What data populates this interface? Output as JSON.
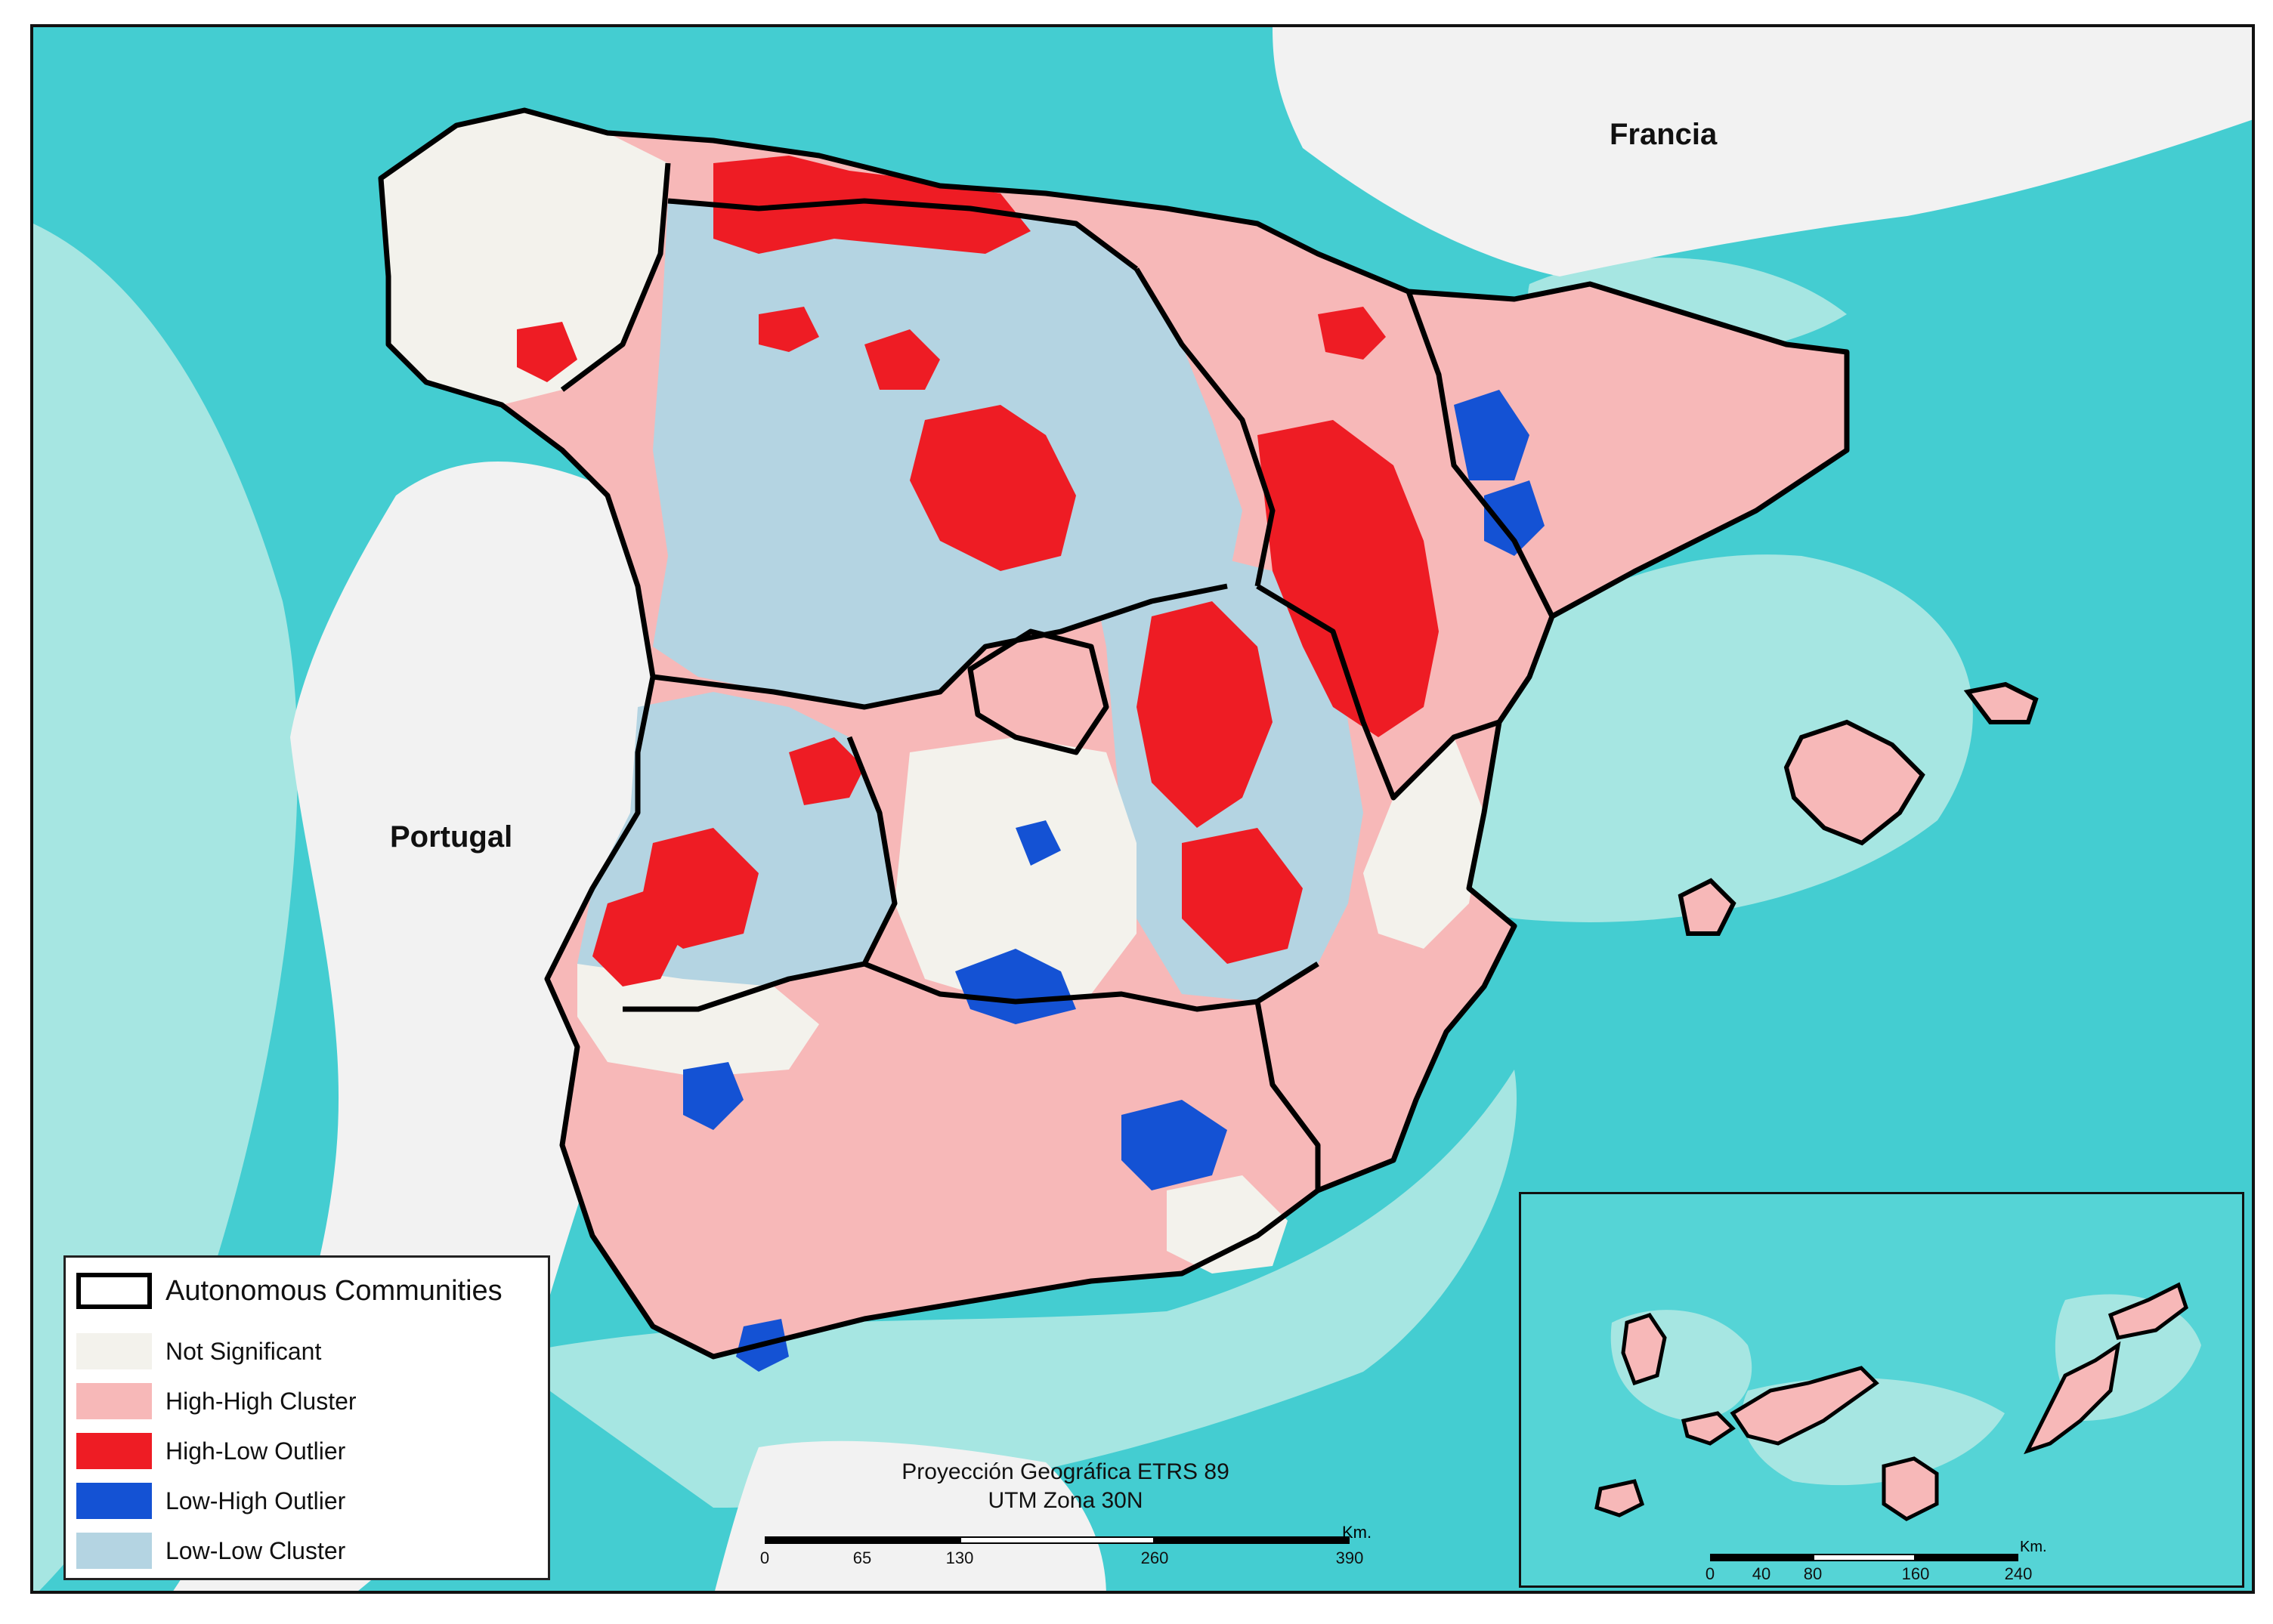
{
  "map": {
    "labels": {
      "portugal": "Portugal",
      "francia": "Francia"
    },
    "projection": {
      "line1": "Proyección Geográfica ETRS 89",
      "line2": "UTM Zona 30N"
    },
    "colors": {
      "sea_deep": "#2fc5cd",
      "sea_mid": "#55d4d6",
      "sea_shallow": "#a6e6e2",
      "land_relief": "#f2f2f2",
      "not_significant": "#f3f2ec",
      "high_high": "#f7b8b8",
      "high_low": "#ee1c24",
      "low_high": "#1452d4",
      "low_low": "#b4d4e2",
      "boundary": "#000000"
    }
  },
  "legend": {
    "title": "Autonomous Communities",
    "items": [
      {
        "label": "Not Significant",
        "color": "#f3f2ec"
      },
      {
        "label": "High-High Cluster",
        "color": "#f7b8b8"
      },
      {
        "label": "High-Low Outlier",
        "color": "#ee1c24"
      },
      {
        "label": "Low-High Outlier",
        "color": "#1452d4"
      },
      {
        "label": "Low-Low Cluster",
        "color": "#b4d4e2"
      }
    ]
  },
  "scalebar_main": {
    "unit": "Km.",
    "ticks": [
      "0",
      "65",
      "130",
      "260",
      "390"
    ]
  },
  "scalebar_inset": {
    "unit": "Km.",
    "ticks": [
      "0",
      "40",
      "80",
      "160",
      "240"
    ]
  }
}
